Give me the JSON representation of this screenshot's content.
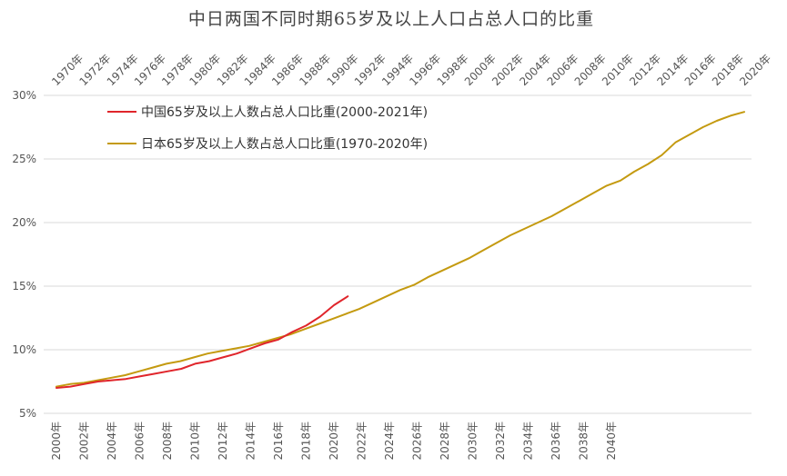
{
  "chart_data": {
    "type": "line",
    "title": "中日两国不同时期65岁及以上人口占总人口的比重",
    "xlabel": "",
    "ylabel": "",
    "ylim": [
      5,
      30
    ],
    "yticks": [
      "5%",
      "10%",
      "15%",
      "20%",
      "25%",
      "30%"
    ],
    "grid": "horizontal",
    "legend_position": "top-left",
    "x_bottom_ticks": [
      "2000年",
      "2002年",
      "2004年",
      "2006年",
      "2008年",
      "2010年",
      "2012年",
      "2014年",
      "2016年",
      "2018年",
      "2020年",
      "2022年",
      "2024年",
      "2026年",
      "2028年",
      "2030年",
      "2032年",
      "2034年",
      "2036年",
      "2038年",
      "2040年"
    ],
    "x_top_ticks": [
      "1970年",
      "1972年",
      "1974年",
      "1976年",
      "1978年",
      "1980年",
      "1982年",
      "1984年",
      "1986年",
      "1988年",
      "1990年",
      "1992年",
      "1994年",
      "1996年",
      "1998年",
      "2000年",
      "2002年",
      "2004年",
      "2006年",
      "2008年",
      "2010年",
      "2012年",
      "2014年",
      "2016年",
      "2018年",
      "2020年"
    ],
    "series": [
      {
        "name": "中国65岁及以上人数占总人口比重(2000-2021年)",
        "color": "#e0252b",
        "axis": "bottom",
        "x": [
          2000,
          2001,
          2002,
          2003,
          2004,
          2005,
          2006,
          2007,
          2008,
          2009,
          2010,
          2011,
          2012,
          2013,
          2014,
          2015,
          2016,
          2017,
          2018,
          2019,
          2020,
          2021
        ],
        "values": [
          7.0,
          7.1,
          7.3,
          7.5,
          7.6,
          7.7,
          7.9,
          8.1,
          8.3,
          8.5,
          8.9,
          9.1,
          9.4,
          9.7,
          10.1,
          10.5,
          10.8,
          11.4,
          11.9,
          12.6,
          13.5,
          14.2
        ]
      },
      {
        "name": "日本65岁及以上人数占总人口比重(1970-2020年)",
        "color": "#c49a10",
        "axis": "top",
        "x": [
          1970,
          1971,
          1972,
          1973,
          1974,
          1975,
          1976,
          1977,
          1978,
          1979,
          1980,
          1981,
          1982,
          1983,
          1984,
          1985,
          1986,
          1987,
          1988,
          1989,
          1990,
          1991,
          1992,
          1993,
          1994,
          1995,
          1996,
          1997,
          1998,
          1999,
          2000,
          2001,
          2002,
          2003,
          2004,
          2005,
          2006,
          2007,
          2008,
          2009,
          2010,
          2011,
          2012,
          2013,
          2014,
          2015,
          2016,
          2017,
          2018,
          2019,
          2020
        ],
        "values": [
          7.1,
          7.3,
          7.4,
          7.6,
          7.8,
          8.0,
          8.3,
          8.6,
          8.9,
          9.1,
          9.4,
          9.7,
          9.9,
          10.1,
          10.3,
          10.6,
          10.9,
          11.2,
          11.6,
          12.0,
          12.4,
          12.8,
          13.2,
          13.7,
          14.2,
          14.7,
          15.1,
          15.7,
          16.2,
          16.7,
          17.2,
          17.8,
          18.4,
          19.0,
          19.5,
          20.0,
          20.5,
          21.1,
          21.7,
          22.3,
          22.9,
          23.3,
          24.0,
          24.6,
          25.3,
          26.3,
          26.9,
          27.5,
          28.0,
          28.4,
          28.7
        ]
      }
    ]
  }
}
